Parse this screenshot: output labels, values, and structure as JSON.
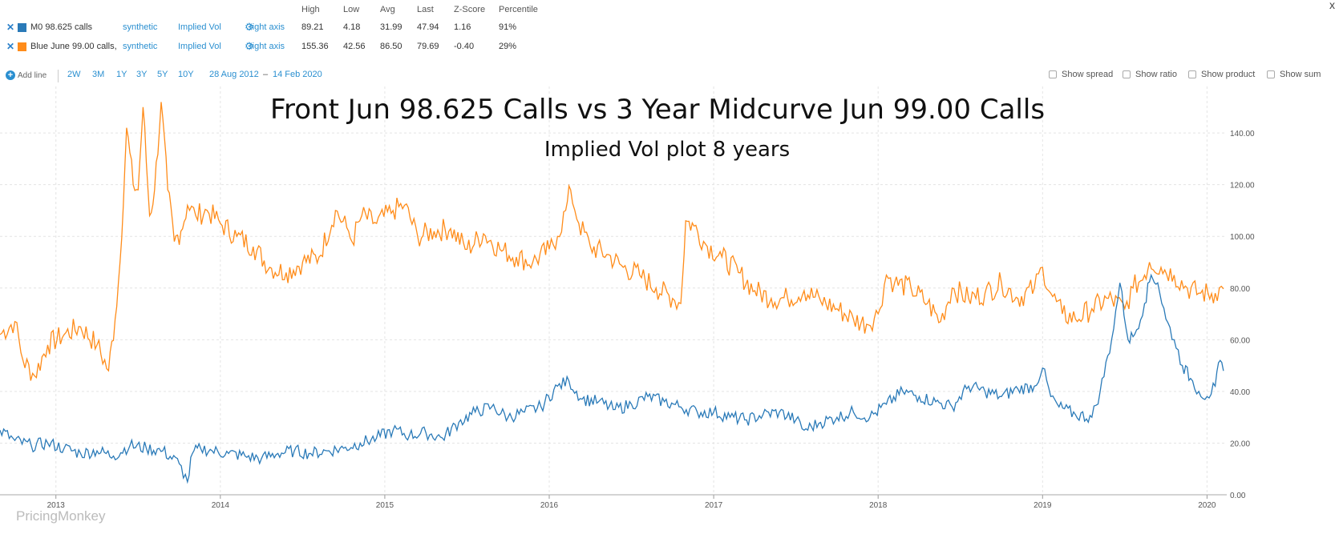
{
  "header": {
    "columns": [
      "High",
      "Low",
      "Avg",
      "Last",
      "Z-Score",
      "Percentile"
    ],
    "rows": [
      {
        "name": "M0 98.625 calls",
        "color": "#2a7ab8",
        "source": "synthetic",
        "measure": "Implied Vol",
        "axis": "right axis",
        "high": "89.21",
        "low": "4.18",
        "avg": "31.99",
        "last": "47.94",
        "zscore": "1.16",
        "percentile": "91%"
      },
      {
        "name": "Blue June 99.00 calls,",
        "color": "#ff8c1a",
        "source": "synthetic",
        "measure": "Implied Vol",
        "axis": "right axis",
        "high": "155.36",
        "low": "42.56",
        "avg": "86.50",
        "last": "79.69",
        "zscore": "-0.40",
        "percentile": "29%"
      }
    ],
    "close_glyph": "x"
  },
  "toolbar": {
    "add_line": "Add line",
    "ranges": [
      "2W",
      "3M",
      "1Y",
      "3Y",
      "5Y",
      "10Y"
    ],
    "date_from": "28 Aug 2012",
    "date_sep": "–",
    "date_to": "14 Feb 2020",
    "checkboxes": [
      "Show spread",
      "Show ratio",
      "Show product",
      "Show sum"
    ]
  },
  "watermark": "PricingMonkey",
  "chart_data": {
    "type": "line",
    "title": "Front Jun 98.625 Calls vs 3 Year Midcurve Jun 99.00 Calls",
    "subtitle": "Implied Vol plot 8 years",
    "xlabel": "",
    "ylabel": "",
    "x_ticks": [
      "2013",
      "2014",
      "2015",
      "2016",
      "2017",
      "2018",
      "2019",
      "2020"
    ],
    "x_tick_values": [
      2013.0,
      2014.0,
      2015.0,
      2016.0,
      2017.0,
      2018.0,
      2019.0,
      2020.0
    ],
    "xlim": [
      2012.66,
      2020.12
    ],
    "y_ticks": [
      "0.00",
      "20.00",
      "40.00",
      "60.00",
      "80.00",
      "100.00",
      "120.00",
      "140.00"
    ],
    "ylim": [
      0,
      158
    ],
    "y_axis_side": "right",
    "grid": true,
    "series": [
      {
        "name": "Blue June 99.00 calls,",
        "color": "#ff8c1a",
        "x": [
          2012.66,
          2012.75,
          2012.8,
          2012.87,
          2012.95,
          2013.05,
          2013.15,
          2013.25,
          2013.32,
          2013.36,
          2013.39,
          2013.43,
          2013.47,
          2013.5,
          2013.53,
          2013.57,
          2013.6,
          2013.64,
          2013.68,
          2013.72,
          2013.76,
          2013.8,
          2013.85,
          2013.92,
          2014.0,
          2014.1,
          2014.2,
          2014.3,
          2014.4,
          2014.5,
          2014.6,
          2014.7,
          2014.78,
          2014.8,
          2014.86,
          2014.95,
          2015.05,
          2015.12,
          2015.2,
          2015.3,
          2015.4,
          2015.5,
          2015.6,
          2015.7,
          2015.8,
          2015.9,
          2016.0,
          2016.05,
          2016.1,
          2016.13,
          2016.18,
          2016.25,
          2016.35,
          2016.45,
          2016.55,
          2016.65,
          2016.75,
          2016.8,
          2016.83,
          2016.88,
          2016.95,
          2017.05,
          2017.15,
          2017.25,
          2017.35,
          2017.45,
          2017.55,
          2017.65,
          2017.75,
          2017.85,
          2017.93,
          2018.0,
          2018.05,
          2018.1,
          2018.2,
          2018.3,
          2018.38,
          2018.45,
          2018.55,
          2018.65,
          2018.75,
          2018.85,
          2018.95,
          2019.0,
          2019.05,
          2019.12,
          2019.2,
          2019.3,
          2019.4,
          2019.5,
          2019.55,
          2019.62,
          2019.65,
          2019.72,
          2019.8,
          2019.88,
          2019.95,
          2020.05,
          2020.1
        ],
        "values": [
          62,
          67,
          52,
          46,
          58,
          62,
          65,
          58,
          48,
          68,
          90,
          142,
          120,
          118,
          150,
          108,
          118,
          152,
          118,
          98,
          102,
          112,
          108,
          110,
          105,
          100,
          96,
          88,
          86,
          90,
          92,
          110,
          102,
          98,
          108,
          105,
          110,
          112,
          100,
          102,
          103,
          95,
          101,
          95,
          92,
          90,
          95,
          100,
          110,
          118,
          105,
          96,
          93,
          88,
          85,
          80,
          76,
          74,
          106,
          104,
          97,
          92,
          86,
          79,
          76,
          76,
          79,
          75,
          72,
          68,
          66,
          70,
          85,
          82,
          80,
          74,
          67,
          80,
          76,
          78,
          82,
          76,
          80,
          88,
          78,
          70,
          68,
          72,
          76,
          72,
          80,
          85,
          90,
          88,
          85,
          80,
          78,
          78,
          79.69
        ]
      },
      {
        "name": "M0 98.625 calls",
        "color": "#2a7ab8",
        "x": [
          2012.66,
          2012.75,
          2012.85,
          2012.95,
          2013.05,
          2013.15,
          2013.25,
          2013.35,
          2013.45,
          2013.55,
          2013.65,
          2013.75,
          2013.8,
          2013.83,
          2013.88,
          2013.95,
          2014.05,
          2014.15,
          2014.25,
          2014.35,
          2014.45,
          2014.55,
          2014.65,
          2014.75,
          2014.85,
          2014.95,
          2015.05,
          2015.15,
          2015.25,
          2015.35,
          2015.45,
          2015.55,
          2015.65,
          2015.75,
          2015.85,
          2015.95,
          2016.05,
          2016.12,
          2016.2,
          2016.3,
          2016.4,
          2016.5,
          2016.6,
          2016.7,
          2016.8,
          2016.9,
          2017.0,
          2017.1,
          2017.2,
          2017.3,
          2017.4,
          2017.5,
          2017.55,
          2017.65,
          2017.75,
          2017.85,
          2017.95,
          2018.05,
          2018.15,
          2018.25,
          2018.35,
          2018.45,
          2018.55,
          2018.65,
          2018.75,
          2018.85,
          2018.95,
          2019.0,
          2019.05,
          2019.1,
          2019.2,
          2019.3,
          2019.35,
          2019.42,
          2019.47,
          2019.52,
          2019.56,
          2019.62,
          2019.66,
          2019.7,
          2019.75,
          2019.8,
          2019.85,
          2019.9,
          2019.95,
          2020.0,
          2020.05,
          2020.08,
          2020.1
        ],
        "values": [
          25,
          21,
          19,
          20,
          18,
          16,
          17,
          15,
          19,
          18,
          17,
          12,
          5,
          16,
          18,
          17,
          16,
          15,
          14,
          16,
          17,
          16,
          17,
          18,
          20,
          22,
          25,
          23,
          24,
          22,
          28,
          32,
          34,
          30,
          32,
          34,
          42,
          44,
          37,
          36,
          33,
          35,
          38,
          36,
          34,
          32,
          32,
          30,
          29,
          31,
          32,
          29,
          25,
          28,
          30,
          32,
          30,
          35,
          40,
          38,
          36,
          34,
          42,
          40,
          38,
          41,
          42,
          49,
          38,
          34,
          31,
          30,
          40,
          60,
          82,
          60,
          62,
          74,
          85,
          82,
          68,
          60,
          50,
          45,
          40,
          38,
          42,
          52,
          47.94
        ]
      }
    ]
  }
}
